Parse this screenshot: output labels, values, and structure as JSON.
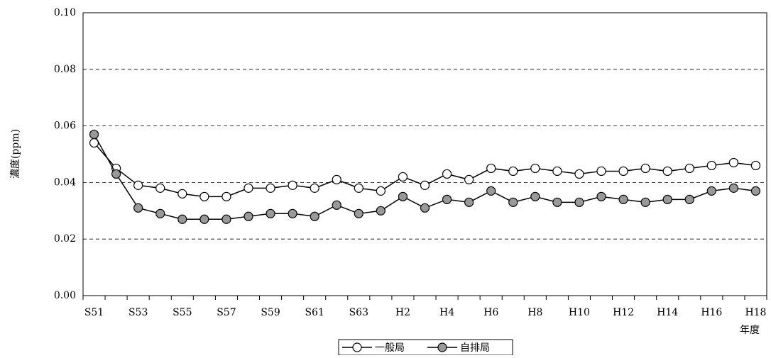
{
  "chart_data": {
    "type": "line",
    "y_label": "濃度(ppm)",
    "x_label": "年度",
    "categories": [
      "S51",
      null,
      "S53",
      null,
      "S55",
      null,
      "S57",
      null,
      "S59",
      null,
      "S61",
      null,
      "S63",
      null,
      "H2",
      null,
      "H4",
      null,
      "H6",
      null,
      "H8",
      null,
      "H10",
      null,
      "H12",
      null,
      "H14",
      null,
      "H16",
      null,
      "H18"
    ],
    "series": [
      {
        "name": "一般局",
        "color": "#ffffff",
        "values": [
          0.054,
          0.045,
          0.039,
          0.038,
          0.036,
          0.035,
          0.035,
          0.038,
          0.038,
          0.039,
          0.038,
          0.041,
          0.038,
          0.037,
          0.042,
          0.039,
          0.043,
          0.041,
          0.045,
          0.044,
          0.045,
          0.044,
          0.043,
          0.044,
          0.044,
          0.045,
          0.044,
          0.045,
          0.046,
          0.047,
          0.046
        ]
      },
      {
        "name": "自排局",
        "color": "#999999",
        "values": [
          0.057,
          0.043,
          0.031,
          0.029,
          0.027,
          0.027,
          0.027,
          0.028,
          0.029,
          0.029,
          0.028,
          0.032,
          0.029,
          0.03,
          0.035,
          0.031,
          0.034,
          0.033,
          0.037,
          0.033,
          0.035,
          0.033,
          0.033,
          0.035,
          0.034,
          0.033,
          0.034,
          0.034,
          0.037,
          0.038,
          0.037
        ]
      }
    ],
    "ylim": [
      0,
      0.1
    ],
    "yticks": [
      {
        "value": 0,
        "label": "0.00"
      },
      {
        "value": 0.02,
        "label": "0.02"
      },
      {
        "value": 0.04,
        "label": "0.04"
      },
      {
        "value": 0.06,
        "label": "0.06"
      },
      {
        "value": 0.08,
        "label": "0.08"
      },
      {
        "value": 0.1,
        "label": "0.10"
      }
    ],
    "grid": true,
    "legend": "bottom"
  }
}
